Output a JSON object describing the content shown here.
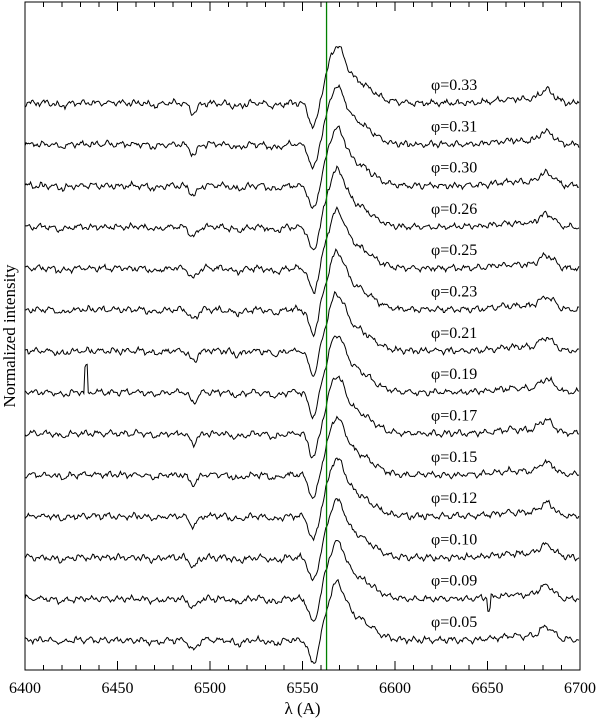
{
  "chart_data": {
    "type": "line",
    "xlabel": "λ (A)",
    "ylabel": "Normalized intensity",
    "xlim": [
      6400,
      6700
    ],
    "x_ticks": [
      "6400",
      "6450",
      "6500",
      "6550",
      "6600",
      "6650",
      "6700"
    ],
    "reference_line": {
      "x": 6563,
      "color": "#008000"
    },
    "line_color": "#000000",
    "grid": false,
    "legend": "none",
    "spectra_features": {
      "absorption_6491": true,
      "halpha_absorption_6555": true,
      "halpha_emission_6568": true,
      "emission_6680": true
    },
    "series": [
      {
        "label": "φ=0.33"
      },
      {
        "label": "φ=0.31"
      },
      {
        "label": "φ=0.30"
      },
      {
        "label": "φ=0.26"
      },
      {
        "label": "φ=0.25"
      },
      {
        "label": "φ=0.23"
      },
      {
        "label": "φ=0.21"
      },
      {
        "label": "φ=0.19"
      },
      {
        "label": "φ=0.17"
      },
      {
        "label": "φ=0.15"
      },
      {
        "label": "φ=0.12"
      },
      {
        "label": "φ=0.10"
      },
      {
        "label": "φ=0.09"
      },
      {
        "label": "φ=0.05"
      }
    ]
  }
}
